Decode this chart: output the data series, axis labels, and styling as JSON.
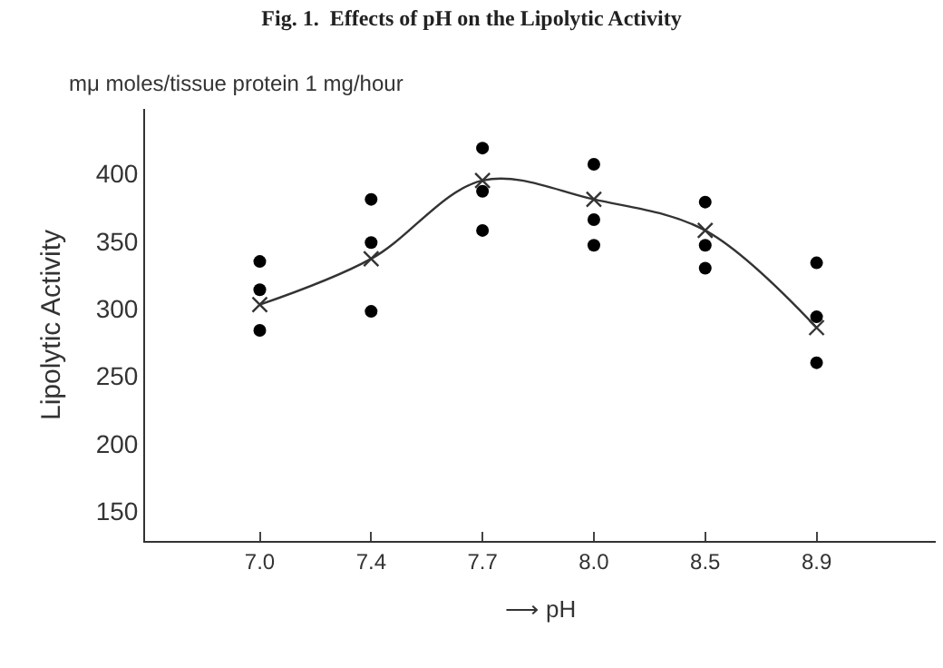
{
  "chart_data": {
    "type": "scatter",
    "title": "Fig. 1.  Effects of pH on the Lipolytic Activity",
    "xlabel": "⟶ pH",
    "ylabel": "Lipolytic Activity",
    "annotations": [
      "mμ moles/tissue protein 1 mg/hour"
    ],
    "categories": [
      "7.0",
      "7.4",
      "7.7",
      "8.0",
      "8.5",
      "8.9"
    ],
    "series": [
      {
        "marker": "circle",
        "color": "#000000",
        "x": [
          "7.0",
          "7.0",
          "7.0",
          "7.4",
          "7.4",
          "7.4",
          "7.7",
          "7.7",
          "7.7",
          "8.0",
          "8.0",
          "8.0",
          "8.5",
          "8.5",
          "8.5",
          "8.9",
          "8.9",
          "8.9"
        ],
        "values": [
          335,
          314,
          284,
          381,
          349,
          298,
          419,
          387,
          358,
          407,
          366,
          347,
          379,
          347,
          330,
          334,
          294,
          260
        ]
      },
      {
        "type": "line",
        "marker": "cross",
        "color": "#333333",
        "values": [
          303,
          337,
          395,
          381,
          358,
          286
        ]
      }
    ],
    "ylim": [
      128,
      448
    ],
    "yticks": [
      150,
      200,
      250,
      300,
      350,
      400
    ]
  }
}
